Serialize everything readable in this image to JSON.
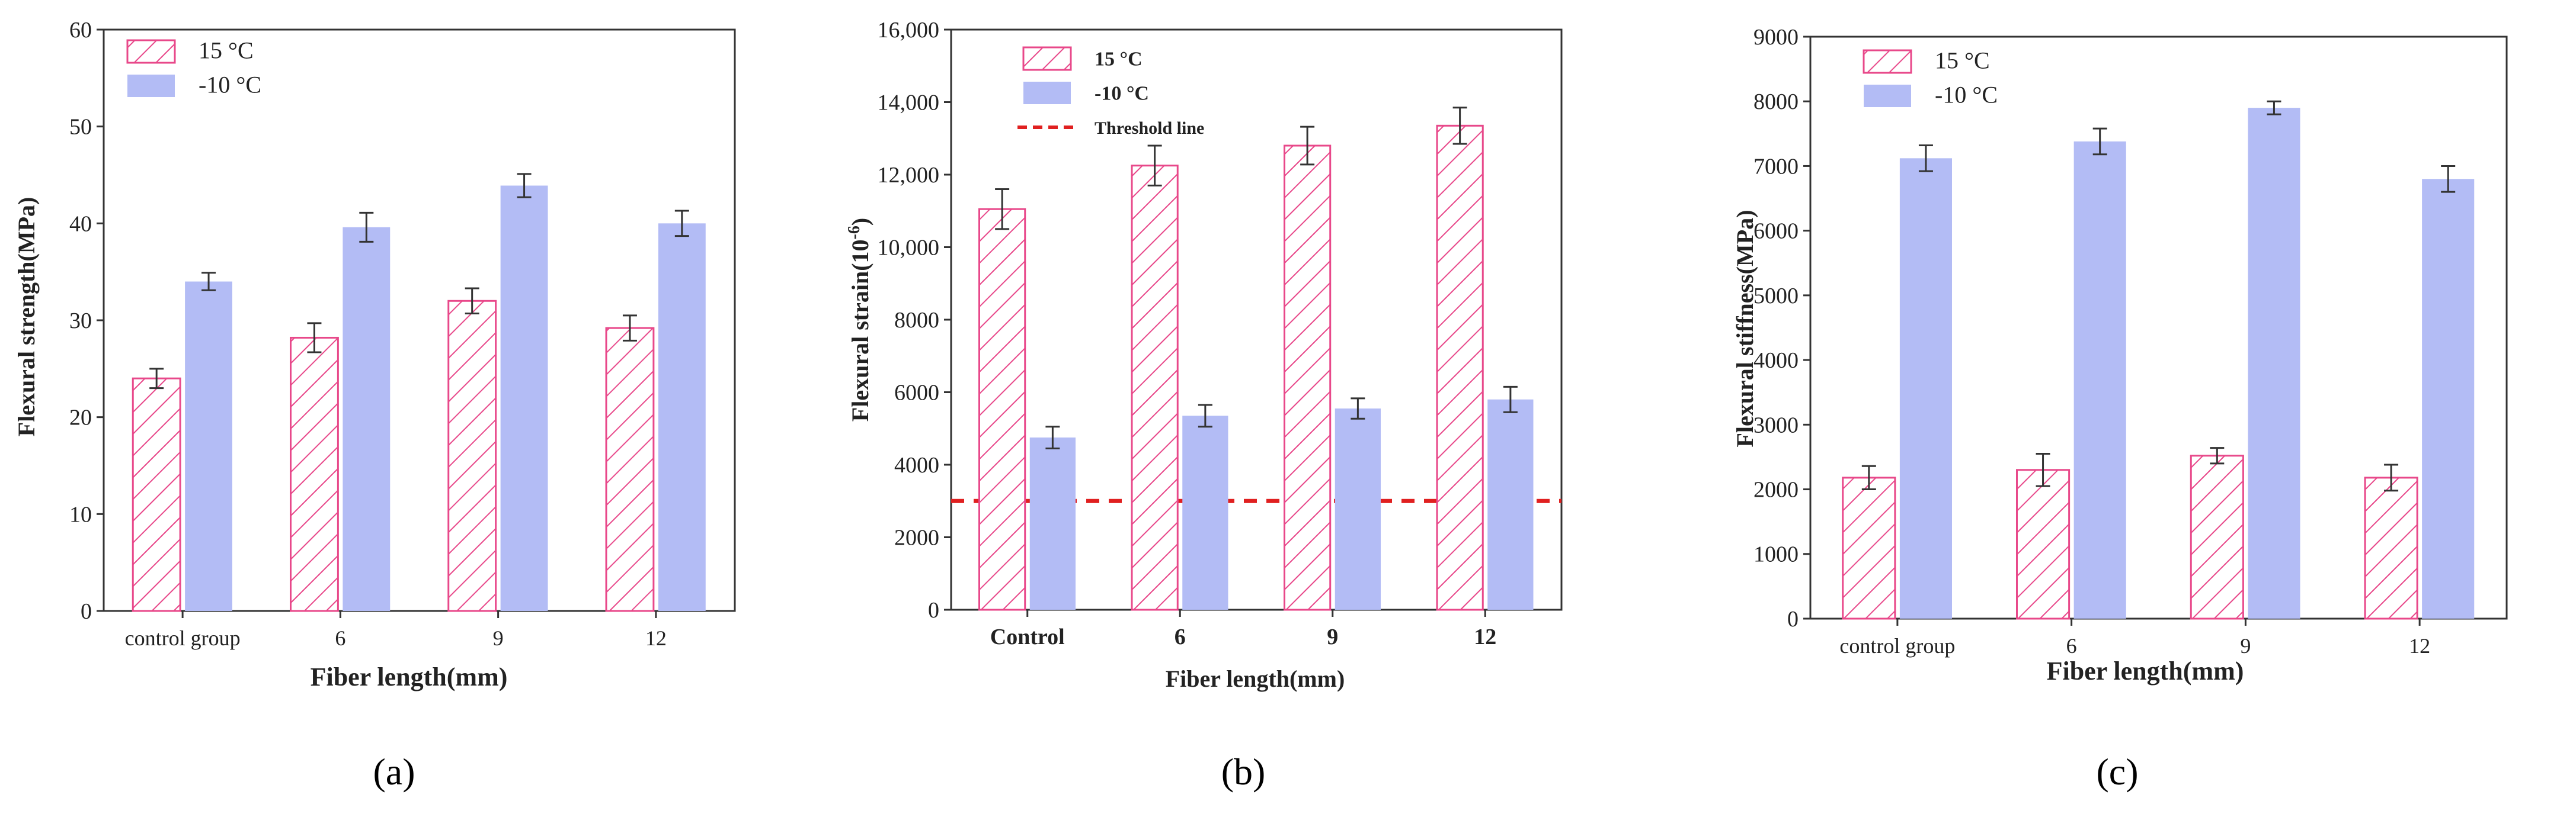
{
  "figure": {
    "panel_labels": [
      "(a)",
      "(b)",
      "(c)"
    ]
  },
  "colors": {
    "hatch": "#e8488a",
    "hatch_bg": "#ffffff",
    "fill": "#b3bcf5",
    "threshold": "#e02020",
    "axis": "#333333",
    "errorbar": "#333333"
  },
  "chart_data": [
    {
      "type": "bar",
      "title": "",
      "panel_label": "(a)",
      "categories": [
        "control group",
        "6",
        "9",
        "12"
      ],
      "series": [
        {
          "name": "15 °C",
          "style": "hatch",
          "values": [
            24,
            28.2,
            32,
            29.2
          ],
          "errors": [
            1.0,
            1.5,
            1.3,
            1.3
          ]
        },
        {
          "name": "-10 °C",
          "style": "fill",
          "values": [
            34,
            39.6,
            43.9,
            40
          ],
          "errors": [
            0.9,
            1.5,
            1.2,
            1.3
          ]
        }
      ],
      "xlabel": "Fiber length(mm)",
      "ylabel": "Flexural strength(MPa)",
      "ylim": [
        0,
        60
      ],
      "yticks": [
        0,
        10,
        20,
        30,
        40,
        50,
        60
      ],
      "ytick_labels": [
        "0",
        "10",
        "20",
        "30",
        "40",
        "50",
        "60"
      ],
      "legend": "top-left"
    },
    {
      "type": "bar",
      "title": "",
      "panel_label": "(b)",
      "categories": [
        "Control",
        "6",
        "9",
        "12"
      ],
      "series": [
        {
          "name": "15 °C",
          "style": "hatch",
          "values": [
            11050,
            12250,
            12800,
            13350
          ],
          "errors": [
            550,
            550,
            520,
            500
          ]
        },
        {
          "name": "-10 °C",
          "style": "fill",
          "values": [
            4750,
            5350,
            5550,
            5800
          ],
          "errors": [
            300,
            300,
            280,
            350
          ]
        }
      ],
      "threshold": {
        "name": "Threshold line",
        "value": 3000
      },
      "xlabel": "Fiber length(mm)",
      "ylabel_main": "Flexural strain(10",
      "ylabel_sup": "-6",
      "ylabel_tail": ")",
      "ylim": [
        0,
        16000
      ],
      "yticks": [
        0,
        2000,
        4000,
        6000,
        8000,
        10000,
        12000,
        14000,
        16000
      ],
      "ytick_labels": [
        "0",
        "2000",
        "4000",
        "6000",
        "8000",
        "10,000",
        "12,000",
        "14,000",
        "16,000"
      ],
      "legend": "top-left"
    },
    {
      "type": "bar",
      "title": "",
      "panel_label": "(c)",
      "categories": [
        "control group",
        "6",
        "9",
        "12"
      ],
      "series": [
        {
          "name": "15 °C",
          "style": "hatch",
          "values": [
            2180,
            2300,
            2520,
            2180
          ],
          "errors": [
            180,
            250,
            120,
            200
          ]
        },
        {
          "name": "-10 °C",
          "style": "fill",
          "values": [
            7120,
            7380,
            7900,
            6800
          ],
          "errors": [
            200,
            200,
            100,
            200
          ]
        }
      ],
      "xlabel": "Fiber length(mm)",
      "ylabel": "Flexural stiffness(MPa)",
      "ylim": [
        0,
        9000
      ],
      "yticks": [
        0,
        1000,
        2000,
        3000,
        4000,
        5000,
        6000,
        7000,
        8000,
        9000
      ],
      "ytick_labels": [
        "0",
        "1000",
        "2000",
        "3000",
        "4000",
        "5000",
        "6000",
        "7000",
        "8000",
        "9000"
      ],
      "legend": "top-left"
    }
  ]
}
